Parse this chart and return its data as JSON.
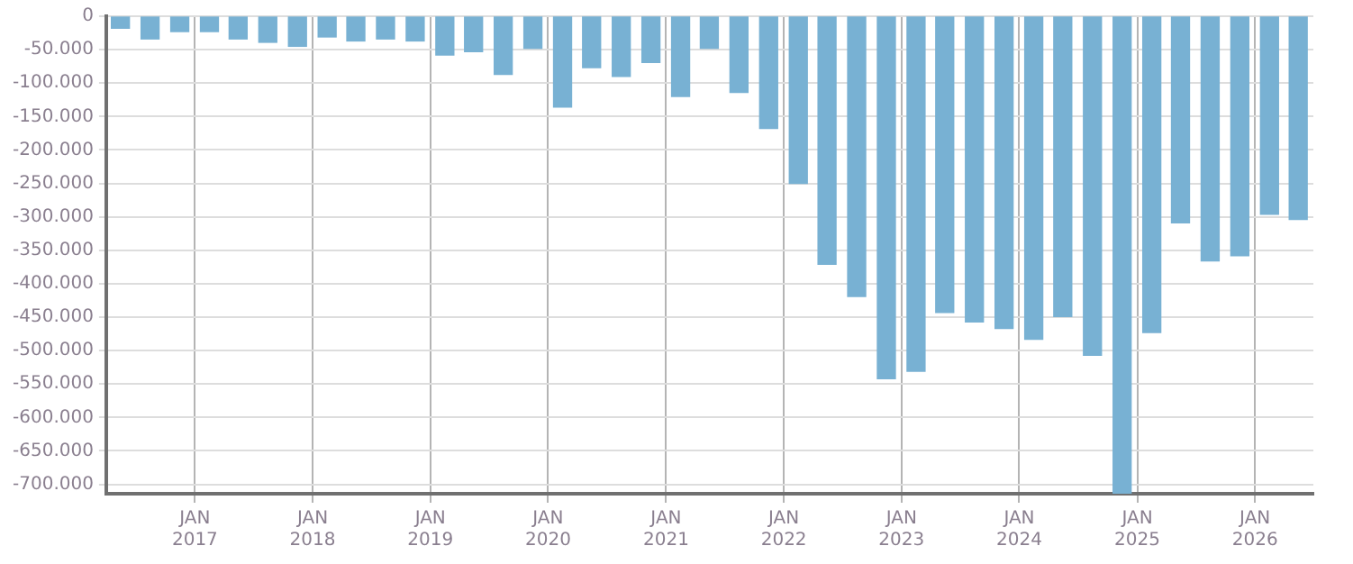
{
  "chart_data": {
    "type": "bar",
    "x": [
      "2016-05-15",
      "2016-08-15",
      "2016-11-15",
      "2017-02-15",
      "2017-05-15",
      "2017-08-15",
      "2017-11-15",
      "2018-02-15",
      "2018-05-15",
      "2018-08-15",
      "2018-11-15",
      "2019-02-15",
      "2019-05-15",
      "2019-08-15",
      "2019-11-15",
      "2020-02-15",
      "2020-05-15",
      "2020-08-15",
      "2020-11-15",
      "2021-02-15",
      "2021-05-15",
      "2021-08-15",
      "2021-11-15",
      "2022-02-15",
      "2022-05-15",
      "2022-08-15",
      "2022-11-15",
      "2023-02-15",
      "2023-05-15",
      "2023-08-15",
      "2023-11-15",
      "2024-02-15",
      "2024-05-15",
      "2024-08-15",
      "2024-11-15",
      "2025-02-15",
      "2025-05-15",
      "2025-08-15",
      "2025-11-15",
      "2026-02-15",
      "2026-05-15"
    ],
    "values": [
      -18000,
      -34000,
      -23000,
      -23000,
      -34000,
      -39000,
      -45000,
      -31000,
      -37000,
      -34000,
      -37000,
      -58000,
      -53000,
      -87000,
      -48000,
      -136000,
      -77000,
      -90000,
      -69000,
      -120000,
      -48000,
      -114000,
      -168000,
      -250000,
      -371000,
      -419000,
      -542000,
      -531000,
      -443000,
      -457000,
      -467000,
      -483000,
      -449000,
      -507000,
      -714000,
      -473000,
      -309000,
      -366000,
      -358000,
      -296000,
      -304000
    ],
    "color": "#78b1d3",
    "xlim": [
      "2016-04-01",
      "2026-07-01"
    ],
    "xticks": [
      {
        "value": "2017-01-01",
        "label": "JAN 2017"
      },
      {
        "value": "2018-01-01",
        "label": "JAN 2018"
      },
      {
        "value": "2019-01-01",
        "label": "JAN 2019"
      },
      {
        "value": "2020-01-01",
        "label": "JAN 2020"
      },
      {
        "value": "2021-01-01",
        "label": "JAN 2021"
      },
      {
        "value": "2022-01-01",
        "label": "JAN 2022"
      },
      {
        "value": "2023-01-01",
        "label": "JAN 2023"
      },
      {
        "value": "2024-01-01",
        "label": "JAN 2024"
      },
      {
        "value": "2025-01-01",
        "label": "JAN 2025"
      },
      {
        "value": "2026-01-01",
        "label": "JAN 2026"
      }
    ],
    "ylim": [
      -714000,
      0
    ],
    "yticks": [
      0,
      {
        "value": -50000,
        "label": "-50.000"
      },
      {
        "value": -100000,
        "label": "-100.000"
      },
      {
        "value": -150000,
        "label": "-150.000"
      },
      {
        "value": -200000,
        "label": "-200.000"
      },
      {
        "value": -250000,
        "label": "-250.000"
      },
      {
        "value": -300000,
        "label": "-300.000"
      },
      {
        "value": -350000,
        "label": "-350.000"
      },
      {
        "value": -400000,
        "label": "-400.000"
      },
      {
        "value": -450000,
        "label": "-450.000"
      },
      {
        "value": -500000,
        "label": "-500.000"
      },
      {
        "value": -550000,
        "label": "-550.000"
      },
      {
        "value": -600000,
        "label": "-600.000"
      },
      {
        "value": -650000,
        "label": "-650.000"
      },
      {
        "value": -700000,
        "label": "-700.000"
      }
    ],
    "grid": true
  }
}
